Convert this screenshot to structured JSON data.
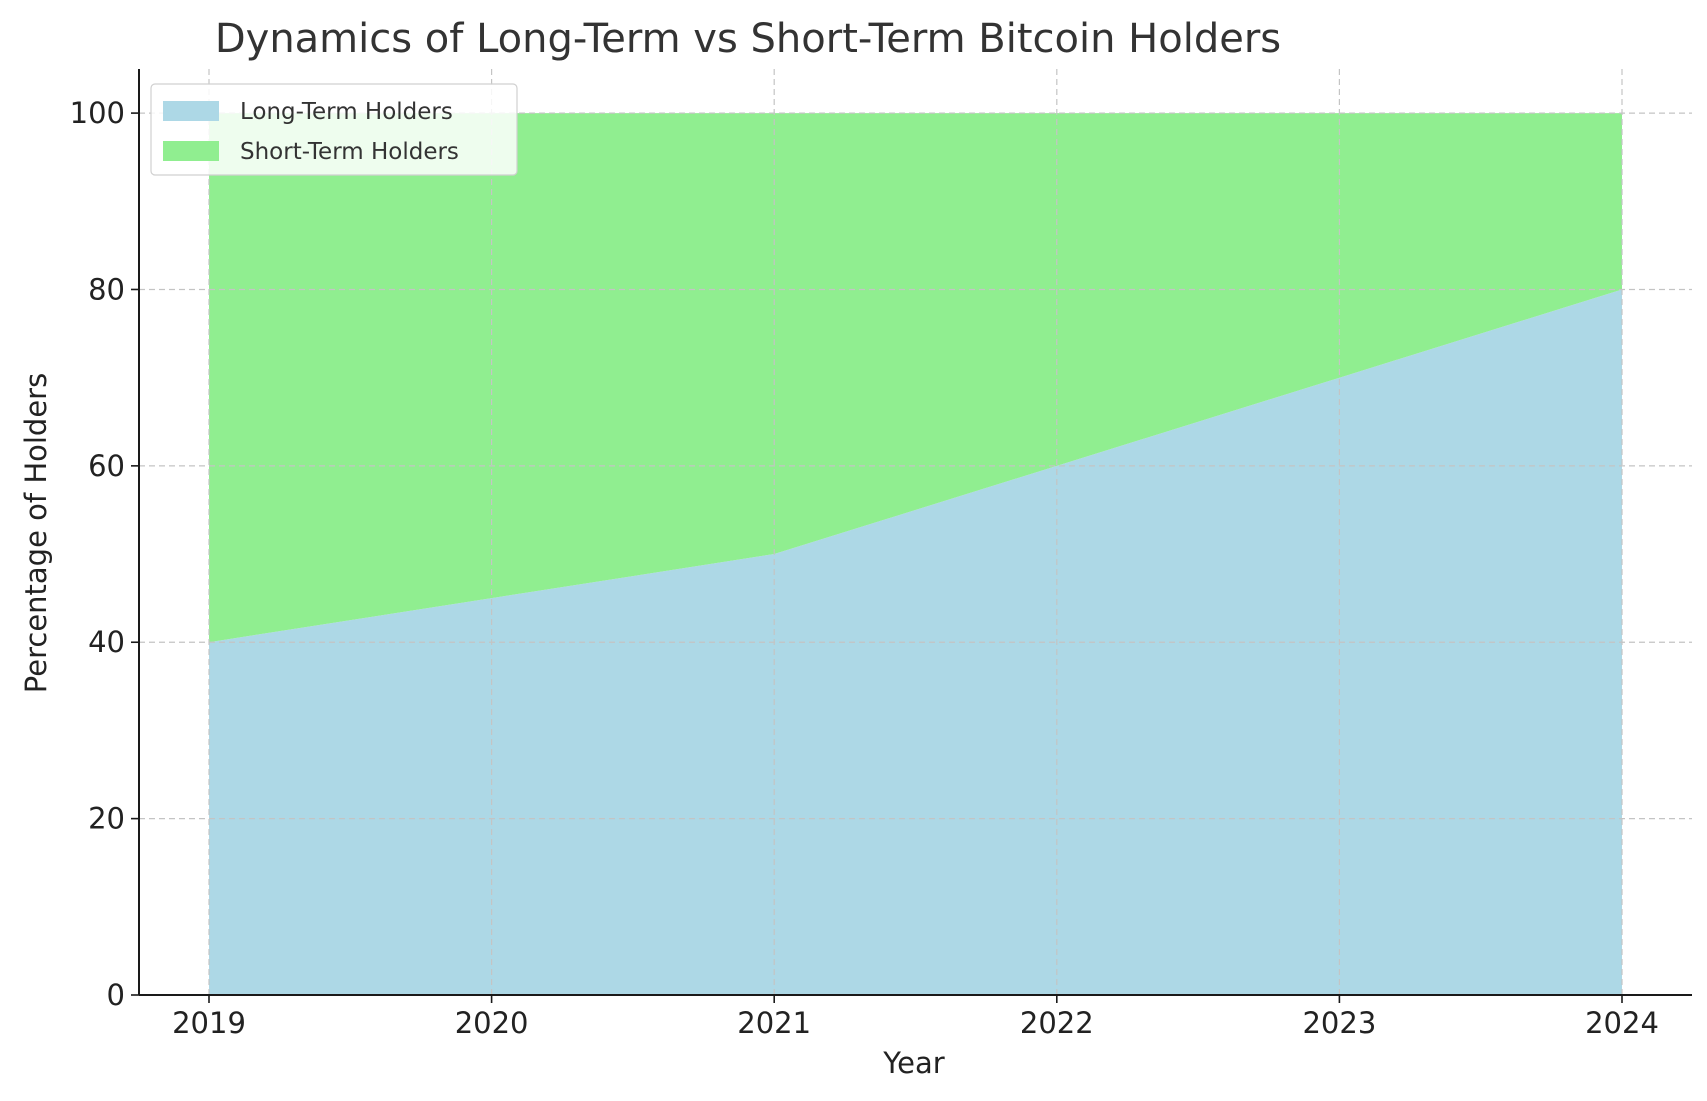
{
  "chart_data": {
    "type": "area",
    "stacked": true,
    "title": "Dynamics of Long-Term vs Short-Term Bitcoin Holders",
    "xlabel": "Year",
    "ylabel": "Percentage of Holders",
    "x": [
      "2019",
      "2020",
      "2021",
      "2022",
      "2023",
      "2024"
    ],
    "y_ticks": [
      "0",
      "20",
      "40",
      "60",
      "80",
      "100"
    ],
    "ylim": [
      0,
      105
    ],
    "grid": true,
    "legend_position": "top-left",
    "series": [
      {
        "name": "Long-Term Holders",
        "values": [
          40,
          45,
          50,
          60,
          70,
          80
        ],
        "color": "#add8e6"
      },
      {
        "name": "Short-Term Holders",
        "values": [
          60,
          55,
          50,
          40,
          30,
          20
        ],
        "color": "#90ee90"
      }
    ]
  }
}
